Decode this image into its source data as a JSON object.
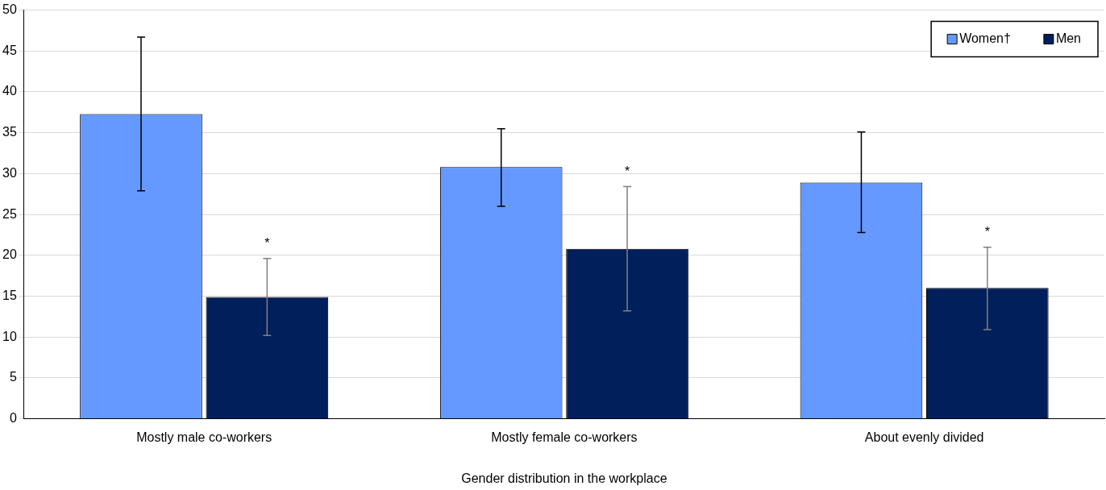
{
  "chart_data": {
    "type": "bar",
    "xlabel": "Gender distribution in the workplace",
    "categories": [
      "Mostly male co-workers",
      "Mostly female co-workers",
      "About evenly divided"
    ],
    "series": [
      {
        "name": "Women†",
        "color": "#6699ff",
        "values": [
          37.3,
          30.8,
          28.9
        ],
        "errors": [
          [
            27.9,
            46.7
          ],
          [
            26.0,
            35.5
          ],
          [
            22.8,
            35.1
          ]
        ]
      },
      {
        "name": "Men",
        "color": "#001f5b",
        "values": [
          14.9,
          20.8,
          16.0
        ],
        "errors": [
          [
            10.2,
            19.6
          ],
          [
            13.2,
            28.4
          ],
          [
            10.9,
            21.0
          ]
        ]
      }
    ],
    "ylim": [
      0,
      50
    ],
    "yticks": [
      0,
      5,
      10,
      15,
      20,
      25,
      30,
      35,
      40,
      45,
      50
    ],
    "grid": "y",
    "legend": "top right",
    "annotations": [
      "*",
      "*",
      "*"
    ]
  }
}
